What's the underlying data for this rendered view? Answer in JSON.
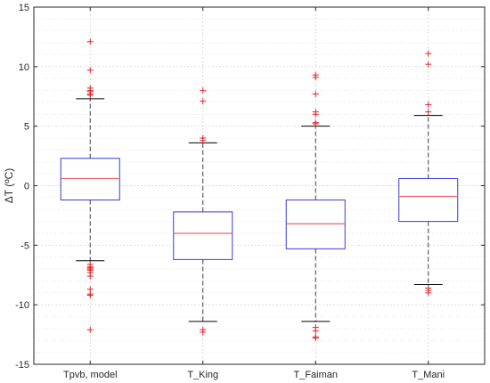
{
  "chart_data": {
    "type": "box",
    "title": "",
    "xlabel": "",
    "ylabel": "ΔT (ºC)",
    "ylim": [
      -15,
      15
    ],
    "yticks": [
      -15,
      -10,
      -5,
      0,
      5,
      10,
      15
    ],
    "grid": true,
    "categories": [
      "Tpvb, model",
      "T_King",
      "T_Faiman",
      "T_Mani"
    ],
    "boxes": [
      {
        "category": "Tpvb, model",
        "whisker_low": -6.3,
        "q1": -1.2,
        "median": 0.6,
        "q3": 2.3,
        "whisker_high": 7.3,
        "outliers": [
          12.1,
          9.7,
          8.2,
          8.0,
          7.9,
          7.7,
          7.6,
          -6.6,
          -6.8,
          -6.9,
          -7.0,
          -7.1,
          -7.3,
          -7.6,
          -8.7,
          -9.1,
          -9.2,
          -12.1
        ]
      },
      {
        "category": "T_King",
        "whisker_low": -11.4,
        "q1": -6.2,
        "median": -4.0,
        "q3": -2.2,
        "whisker_high": 3.6,
        "outliers": [
          8.0,
          7.1,
          4.0,
          3.8,
          -12.1,
          -12.3
        ]
      },
      {
        "category": "T_Faiman",
        "whisker_low": -11.4,
        "q1": -5.3,
        "median": -3.2,
        "q3": -1.2,
        "whisker_high": 5.0,
        "outliers": [
          9.3,
          9.1,
          7.7,
          6.2,
          6.0,
          5.3,
          5.2,
          -11.9,
          -12.2,
          -12.7,
          -12.8
        ]
      },
      {
        "category": "T_Mani",
        "whisker_low": -8.3,
        "q1": -3.0,
        "median": -0.9,
        "q3": 0.6,
        "whisker_high": 5.9,
        "outliers": [
          11.1,
          10.2,
          6.8,
          6.2,
          -8.6,
          -8.8,
          -9.0
        ]
      }
    ],
    "colors": {
      "box": "#3b3bd9",
      "median": "#e8656a",
      "whisker": "#404040",
      "outlier": "#e0272b",
      "grid": "#d8d8d8",
      "axis": "#262626"
    }
  }
}
